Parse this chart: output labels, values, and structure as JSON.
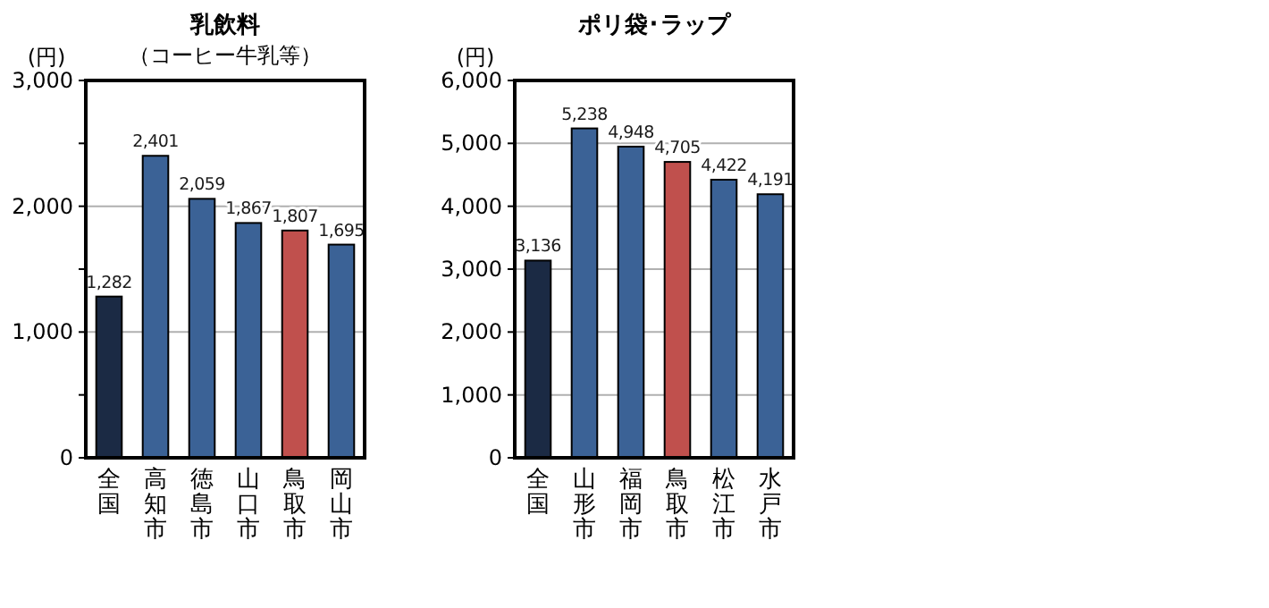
{
  "chart_data": [
    {
      "type": "bar",
      "title": "乳飲料",
      "subtitle": "（コーヒー牛乳等）",
      "ylabel": "(円)",
      "categories": [
        "全国",
        "高知市",
        "徳島市",
        "山口市",
        "鳥取市",
        "岡山市"
      ],
      "values": [
        1282,
        2401,
        2059,
        1867,
        1807,
        1695
      ],
      "value_labels": [
        "1,282",
        "2,401",
        "2,059",
        "1,867",
        "1,807",
        "1,695"
      ],
      "colors": [
        "#1b2a44",
        "#3b6296",
        "#3b6296",
        "#3b6296",
        "#c0504d",
        "#3b6296"
      ],
      "ylim": [
        0,
        3000
      ],
      "yticks": [
        0,
        {
          "value": 500,
          "label": null
        },
        {
          "value": 1000,
          "label": "1,000"
        },
        {
          "value": 1500,
          "label": null
        },
        {
          "value": 2000,
          "label": "2,000"
        },
        {
          "value": 2500,
          "label": null
        },
        {
          "value": 3000,
          "label": "3,000"
        }
      ],
      "grid": "y"
    },
    {
      "type": "bar",
      "title": "ポリ袋･ラップ",
      "ylabel": "(円)",
      "categories": [
        "全国",
        "山形市",
        "福岡市",
        "鳥取市",
        "松江市",
        "水戸市"
      ],
      "values": [
        3136,
        5238,
        4948,
        4705,
        4422,
        4191
      ],
      "value_labels": [
        "3,136",
        "5,238",
        "4,948",
        "4,705",
        "4,422",
        "4,191"
      ],
      "colors": [
        "#1b2a44",
        "#3b6296",
        "#3b6296",
        "#c0504d",
        "#3b6296",
        "#3b6296"
      ],
      "ylim": [
        0,
        6000
      ],
      "yticks": [
        0,
        {
          "value": 1000,
          "label": "1,000"
        },
        {
          "value": 2000,
          "label": "2,000"
        },
        {
          "value": 3000,
          "label": "3,000"
        },
        {
          "value": 4000,
          "label": "4,000"
        },
        {
          "value": 5000,
          "label": "5,000"
        },
        {
          "value": 6000,
          "label": "6,000"
        }
      ],
      "grid": "y"
    }
  ]
}
